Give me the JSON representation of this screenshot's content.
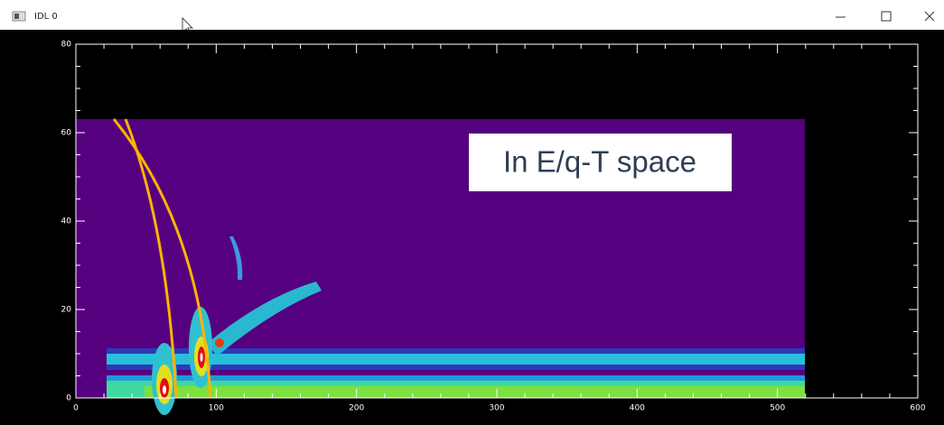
{
  "window": {
    "title": "IDL 0"
  },
  "chart_data": {
    "type": "image",
    "annotation": "In E/q-T space",
    "xlim": [
      0,
      600
    ],
    "ylim": [
      0,
      80
    ],
    "xticks": [
      0,
      100,
      200,
      300,
      400,
      500,
      600
    ],
    "yticks": [
      0,
      20,
      40,
      60,
      80
    ]
  }
}
